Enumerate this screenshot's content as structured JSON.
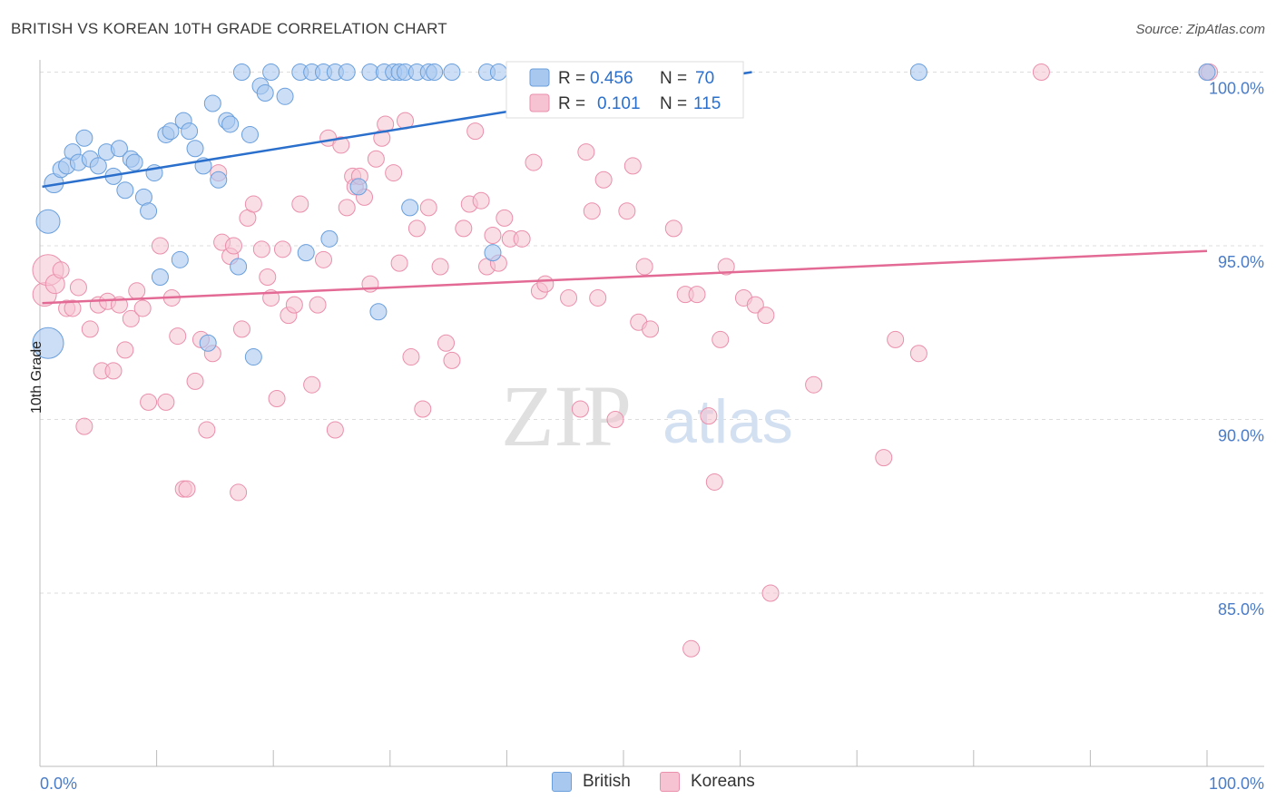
{
  "title": "BRITISH VS KOREAN 10TH GRADE CORRELATION CHART",
  "source": "Source: ZipAtlas.com",
  "watermark": {
    "zip": "ZIP",
    "atlas": "atlas"
  },
  "colors": {
    "british_fill": "#a9c8f0",
    "british_stroke": "#6a9fdc",
    "british_line": "#2a6fcc",
    "korean_fill": "#f6c3d2",
    "korean_stroke": "#ea8fac",
    "korean_line": "#e36a94",
    "tick_label": "#4a7cc7",
    "grid": "#dddddd"
  },
  "legend": {
    "rows": [
      {
        "r_label": "R = ",
        "r_value": "0.456",
        "n_label": "N = ",
        "n_value": "70"
      },
      {
        "r_label": "R = ",
        "r_value": "0.101",
        "n_label": "N = ",
        "n_value": "115"
      }
    ]
  },
  "bottom_legend": [
    "British",
    "Koreans"
  ],
  "chart_data": {
    "type": "scatter",
    "title": "BRITISH VS KOREAN 10TH GRADE CORRELATION CHART",
    "xlabel": "",
    "ylabel": "10th Grade",
    "x_tick_labels": [
      "0.0%",
      "100.0%"
    ],
    "y_tick_labels": [
      "100.0%",
      "95.0%",
      "90.0%",
      "85.0%"
    ],
    "y_ticks": [
      100,
      95,
      90,
      85
    ],
    "xlim": [
      0,
      100
    ],
    "ylim": [
      80,
      100.8
    ],
    "grid": true,
    "legend_position": "top-center",
    "series": [
      {
        "name": "British",
        "R": 0.456,
        "N": 70,
        "trend": [
          [
            0.2,
            96.7
          ],
          [
            61,
            100
          ]
        ],
        "points": [
          [
            0.7,
            92.2,
            3
          ],
          [
            0.7,
            95.7,
            2
          ],
          [
            1.2,
            96.8,
            1
          ],
          [
            1.8,
            97.2,
            0
          ],
          [
            2.3,
            97.3,
            0
          ],
          [
            2.8,
            97.7,
            0
          ],
          [
            3.3,
            97.4,
            0
          ],
          [
            3.8,
            98.1,
            0
          ],
          [
            4.3,
            97.5,
            0
          ],
          [
            5,
            97.3,
            0
          ],
          [
            5.7,
            97.7,
            0
          ],
          [
            6.3,
            97.0,
            0
          ],
          [
            6.8,
            97.8,
            0
          ],
          [
            7.3,
            96.6,
            0
          ],
          [
            7.8,
            97.5,
            0
          ],
          [
            8.1,
            97.4,
            0
          ],
          [
            8.9,
            96.4,
            0
          ],
          [
            9.3,
            96.0,
            0
          ],
          [
            9.8,
            97.1,
            0
          ],
          [
            10.3,
            94.1,
            0
          ],
          [
            10.8,
            98.2,
            0
          ],
          [
            11.2,
            98.3,
            0
          ],
          [
            12,
            94.6,
            0
          ],
          [
            12.3,
            98.6,
            0
          ],
          [
            12.8,
            98.3,
            0
          ],
          [
            13.3,
            97.8,
            0
          ],
          [
            14,
            97.3,
            0
          ],
          [
            14.4,
            92.2,
            0
          ],
          [
            14.8,
            99.1,
            0
          ],
          [
            15.3,
            96.9,
            0
          ],
          [
            16,
            98.6,
            0
          ],
          [
            16.3,
            98.5,
            0
          ],
          [
            17,
            94.4,
            0
          ],
          [
            17.3,
            100,
            0
          ],
          [
            18,
            98.2,
            0
          ],
          [
            18.3,
            91.8,
            0
          ],
          [
            18.9,
            99.6,
            0
          ],
          [
            19.3,
            99.4,
            0
          ],
          [
            19.8,
            100,
            0
          ],
          [
            21,
            99.3,
            0
          ],
          [
            22.3,
            100,
            0
          ],
          [
            22.8,
            94.8,
            0
          ],
          [
            23.3,
            100,
            0
          ],
          [
            24.3,
            100,
            0
          ],
          [
            24.8,
            95.2,
            0
          ],
          [
            25.3,
            100,
            0
          ],
          [
            26.3,
            100,
            0
          ],
          [
            27.3,
            96.7,
            0
          ],
          [
            28.3,
            100,
            0
          ],
          [
            29,
            93.1,
            0
          ],
          [
            29.5,
            100,
            0
          ],
          [
            30.3,
            100,
            0
          ],
          [
            30.8,
            100,
            0
          ],
          [
            31.3,
            100,
            0
          ],
          [
            31.7,
            96.1,
            0
          ],
          [
            32.3,
            100,
            0
          ],
          [
            33.3,
            100,
            0
          ],
          [
            33.8,
            100,
            0
          ],
          [
            35.3,
            100,
            0
          ],
          [
            38.3,
            100,
            0
          ],
          [
            38.8,
            94.8,
            0
          ],
          [
            39.3,
            100,
            0
          ],
          [
            41.2,
            100,
            0
          ],
          [
            43.3,
            100,
            0
          ],
          [
            44.3,
            100,
            0
          ],
          [
            47.3,
            100,
            0
          ],
          [
            51.8,
            100,
            0
          ],
          [
            52.3,
            100,
            0
          ],
          [
            75.3,
            100,
            0
          ],
          [
            100,
            100,
            0
          ]
        ]
      },
      {
        "name": "Koreans",
        "R": 0.101,
        "N": 115,
        "trend": [
          [
            0.2,
            93.35
          ],
          [
            100,
            94.85
          ]
        ],
        "points": [
          [
            0.4,
            93.6,
            2
          ],
          [
            0.7,
            94.3,
            3
          ],
          [
            1.3,
            93.9,
            1
          ],
          [
            1.8,
            94.3,
            0
          ],
          [
            2.3,
            93.2,
            0
          ],
          [
            2.8,
            93.2,
            0
          ],
          [
            3.3,
            93.8,
            0
          ],
          [
            3.8,
            89.8,
            0
          ],
          [
            4.3,
            92.6,
            0
          ],
          [
            5,
            93.3,
            0
          ],
          [
            5.3,
            91.4,
            0
          ],
          [
            5.8,
            93.4,
            0
          ],
          [
            6.3,
            91.4,
            0
          ],
          [
            6.8,
            93.3,
            0
          ],
          [
            7.3,
            92.0,
            0
          ],
          [
            7.8,
            92.9,
            0
          ],
          [
            8.3,
            93.7,
            0
          ],
          [
            8.8,
            93.2,
            0
          ],
          [
            9.3,
            90.5,
            0
          ],
          [
            10.3,
            95.0,
            0
          ],
          [
            10.8,
            90.5,
            0
          ],
          [
            11.3,
            93.5,
            0
          ],
          [
            11.8,
            92.4,
            0
          ],
          [
            12.3,
            88.0,
            0
          ],
          [
            12.6,
            88.0,
            0
          ],
          [
            13.3,
            91.1,
            0
          ],
          [
            13.8,
            92.3,
            0
          ],
          [
            14.3,
            89.7,
            0
          ],
          [
            14.8,
            91.9,
            0
          ],
          [
            15.3,
            97.1,
            0
          ],
          [
            15.6,
            95.1,
            0
          ],
          [
            16.3,
            94.7,
            0
          ],
          [
            16.6,
            95.0,
            0
          ],
          [
            17,
            87.9,
            0
          ],
          [
            17.3,
            92.6,
            0
          ],
          [
            17.8,
            95.8,
            0
          ],
          [
            18.3,
            96.2,
            0
          ],
          [
            19,
            94.9,
            0
          ],
          [
            19.5,
            94.1,
            0
          ],
          [
            19.8,
            93.5,
            0
          ],
          [
            20.3,
            90.6,
            0
          ],
          [
            20.8,
            94.9,
            0
          ],
          [
            21.3,
            93.0,
            0
          ],
          [
            21.8,
            93.3,
            0
          ],
          [
            22.3,
            96.2,
            0
          ],
          [
            23.3,
            91.0,
            0
          ],
          [
            23.8,
            93.3,
            0
          ],
          [
            24.3,
            94.6,
            0
          ],
          [
            24.7,
            98.1,
            0
          ],
          [
            25.3,
            89.7,
            0
          ],
          [
            25.8,
            97.9,
            0
          ],
          [
            26.3,
            96.1,
            0
          ],
          [
            26.8,
            97.0,
            0
          ],
          [
            27.0,
            96.7,
            0
          ],
          [
            27.4,
            97.0,
            0
          ],
          [
            27.8,
            96.4,
            0
          ],
          [
            28.3,
            93.9,
            0
          ],
          [
            28.8,
            97.5,
            0
          ],
          [
            29.3,
            98.1,
            0
          ],
          [
            29.6,
            98.5,
            0
          ],
          [
            30.3,
            97.1,
            0
          ],
          [
            30.8,
            94.5,
            0
          ],
          [
            31.3,
            98.6,
            0
          ],
          [
            31.8,
            91.8,
            0
          ],
          [
            32.3,
            95.5,
            0
          ],
          [
            32.8,
            90.3,
            0
          ],
          [
            33.3,
            96.1,
            0
          ],
          [
            34.3,
            94.4,
            0
          ],
          [
            34.8,
            92.2,
            0
          ],
          [
            35.3,
            91.7,
            0
          ],
          [
            36.3,
            95.5,
            0
          ],
          [
            36.8,
            96.2,
            0
          ],
          [
            37.3,
            98.3,
            0
          ],
          [
            37.8,
            96.3,
            0
          ],
          [
            38.3,
            94.4,
            0
          ],
          [
            38.8,
            95.3,
            0
          ],
          [
            39.3,
            94.5,
            0
          ],
          [
            39.8,
            95.8,
            0
          ],
          [
            40.3,
            95.2,
            0
          ],
          [
            41.3,
            95.2,
            0
          ],
          [
            42.3,
            97.4,
            0
          ],
          [
            42.8,
            93.7,
            0
          ],
          [
            43.3,
            93.9,
            0
          ],
          [
            45.3,
            93.5,
            0
          ],
          [
            46.3,
            90.3,
            0
          ],
          [
            46.8,
            97.7,
            0
          ],
          [
            47.3,
            96.0,
            0
          ],
          [
            47.8,
            93.5,
            0
          ],
          [
            48.3,
            96.9,
            0
          ],
          [
            49.3,
            90.0,
            0
          ],
          [
            50.3,
            96.0,
            0
          ],
          [
            50.8,
            97.3,
            0
          ],
          [
            51.3,
            92.8,
            0
          ],
          [
            51.8,
            94.4,
            0
          ],
          [
            52.3,
            92.6,
            0
          ],
          [
            54.3,
            95.5,
            0
          ],
          [
            55.3,
            93.6,
            0
          ],
          [
            55.8,
            83.4,
            0
          ],
          [
            56.3,
            93.6,
            0
          ],
          [
            57.3,
            90.1,
            0
          ],
          [
            57.8,
            88.2,
            0
          ],
          [
            58.3,
            92.3,
            0
          ],
          [
            58.8,
            94.4,
            0
          ],
          [
            60.3,
            93.5,
            0
          ],
          [
            61.3,
            93.3,
            0
          ],
          [
            62.2,
            93.0,
            0
          ],
          [
            62.6,
            85.0,
            0
          ],
          [
            66.3,
            91.0,
            0
          ],
          [
            72.3,
            88.9,
            0
          ],
          [
            73.3,
            92.3,
            0
          ],
          [
            75.3,
            91.9,
            0
          ],
          [
            85.8,
            100,
            0
          ],
          [
            100,
            100,
            0
          ],
          [
            100.2,
            100,
            0
          ],
          [
            55.3,
            99.0,
            0
          ]
        ]
      }
    ]
  }
}
